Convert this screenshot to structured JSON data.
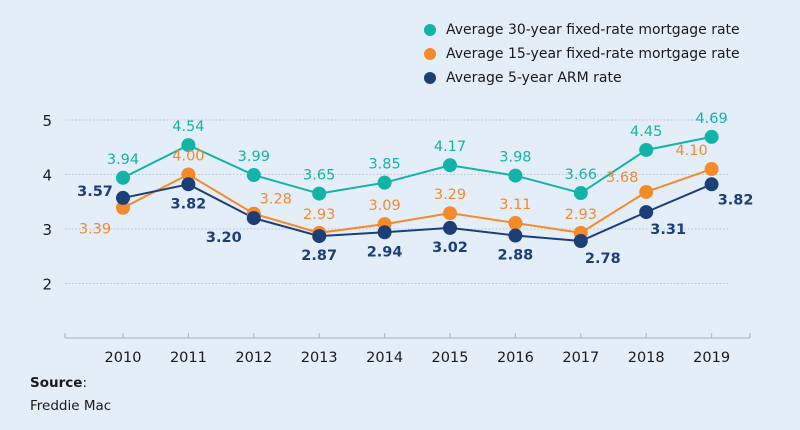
{
  "chart_data": {
    "type": "line",
    "title": "",
    "xlabel": "",
    "ylabel": "",
    "x": [
      "2010",
      "2011",
      "2012",
      "2013",
      "2014",
      "2015",
      "2016",
      "2017",
      "2018",
      "2019"
    ],
    "yticks": [
      "2",
      "3",
      "4",
      "5"
    ],
    "ylim": [
      1.0,
      5.0
    ],
    "grid": true,
    "legend_position": "top-right",
    "series": [
      {
        "name": "Average 30-year fixed-rate mortgage rate",
        "color": "#13b3a8",
        "values": [
          3.94,
          4.54,
          3.99,
          3.65,
          3.85,
          4.17,
          3.98,
          3.66,
          4.45,
          4.69
        ],
        "labels": [
          "3.94",
          "4.54",
          "3.99",
          "3.65",
          "3.85",
          "4.17",
          "3.98",
          "3.66",
          "4.45",
          "4.69"
        ]
      },
      {
        "name": "Average 15-year fixed-rate mortgage rate",
        "color": "#f58a2b",
        "values": [
          3.39,
          4.0,
          3.28,
          2.93,
          3.09,
          3.29,
          3.11,
          2.93,
          3.68,
          4.1
        ],
        "labels": [
          "3.39",
          "4.00",
          "3.28",
          "2.93",
          "3.09",
          "3.29",
          "3.11",
          "2.93",
          "3.68",
          "4.10"
        ]
      },
      {
        "name": "Average 5-year ARM rate",
        "color": "#1c3f78",
        "values": [
          3.57,
          3.82,
          3.2,
          2.87,
          2.94,
          3.02,
          2.88,
          2.78,
          3.31,
          3.82
        ],
        "labels": [
          "3.57",
          "3.82",
          "3.20",
          "2.87",
          "2.94",
          "3.02",
          "2.88",
          "2.78",
          "3.31",
          "3.82"
        ]
      }
    ]
  },
  "source": {
    "label": "Source",
    "colon": ":",
    "text": "Freddie Mac"
  }
}
